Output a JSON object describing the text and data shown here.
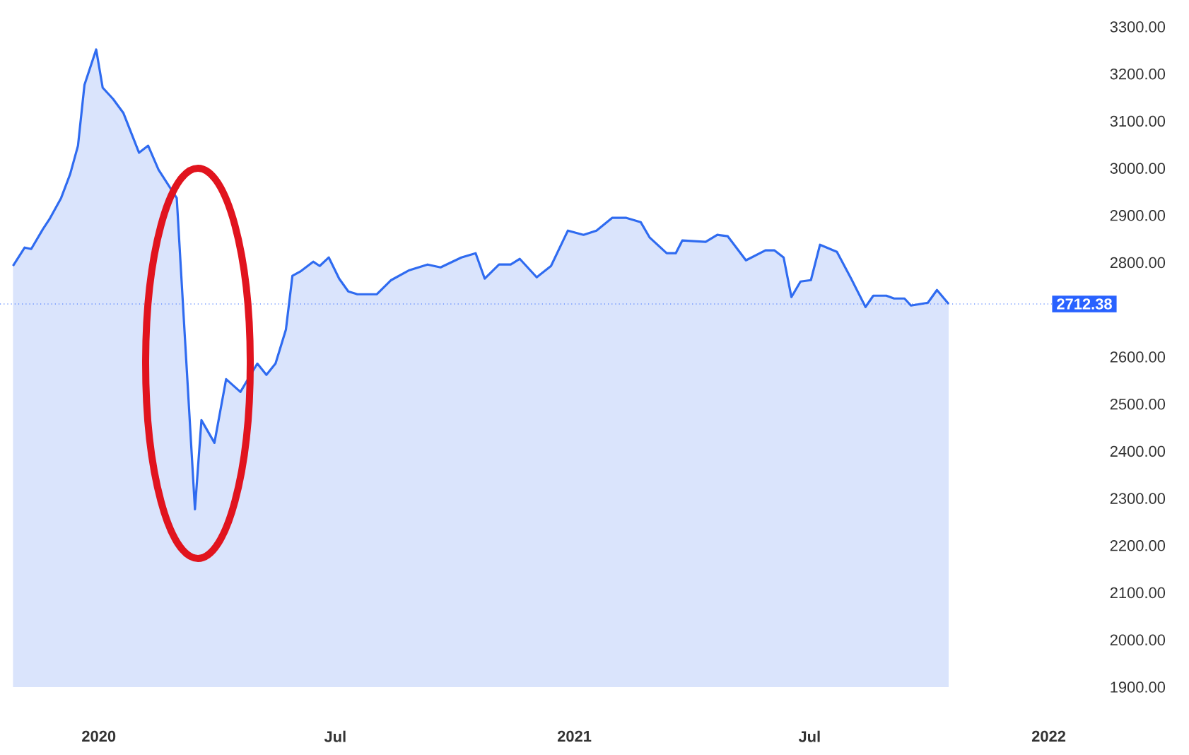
{
  "chart_data": {
    "type": "area",
    "color": "#2f6bf0",
    "x": [
      "2019-10-27",
      "2019-11-05",
      "2019-11-10",
      "2019-11-19",
      "2019-11-24",
      "2019-12-03",
      "2019-12-10",
      "2019-12-16",
      "2019-12-21",
      "2019-12-30",
      "2020-01-04",
      "2020-01-12",
      "2020-01-20",
      "2020-02-01",
      "2020-02-08",
      "2020-02-16",
      "2020-03-01",
      "2020-03-15",
      "2020-03-20",
      "2020-03-30",
      "2020-04-08",
      "2020-04-19",
      "2020-05-02",
      "2020-05-09",
      "2020-05-16",
      "2020-05-24",
      "2020-05-29",
      "2020-06-04",
      "2020-06-14",
      "2020-06-19",
      "2020-06-26",
      "2020-07-04",
      "2020-07-11",
      "2020-07-18",
      "2020-08-02",
      "2020-08-13",
      "2020-08-27",
      "2020-09-10",
      "2020-09-20",
      "2020-10-06",
      "2020-10-17",
      "2020-10-24",
      "2020-11-04",
      "2020-11-13",
      "2020-11-20",
      "2020-12-03",
      "2020-12-14",
      "2020-12-27",
      "2021-01-08",
      "2021-01-18",
      "2021-01-30",
      "2021-02-10",
      "2021-02-21",
      "2021-02-28",
      "2021-03-13",
      "2021-03-20",
      "2021-03-25",
      "2021-04-12",
      "2021-04-21",
      "2021-04-29",
      "2021-05-13",
      "2021-05-28",
      "2021-06-04",
      "2021-06-11",
      "2021-06-17",
      "2021-06-24",
      "2021-07-02",
      "2021-07-09",
      "2021-07-22",
      "2021-08-02",
      "2021-08-13",
      "2021-08-19",
      "2021-08-29",
      "2021-09-04",
      "2021-09-12",
      "2021-09-17",
      "2021-09-30",
      "2021-10-07",
      "2021-10-16"
    ],
    "values": [
      2793,
      2832,
      2829,
      2871,
      2892,
      2937,
      2988,
      3048,
      3177,
      3252,
      3171,
      3147,
      3117,
      3033,
      3048,
      2997,
      2937,
      2277,
      2466,
      2418,
      2553,
      2526,
      2586,
      2562,
      2586,
      2658,
      2772,
      2781,
      2802,
      2793,
      2811,
      2766,
      2739,
      2733,
      2733,
      2763,
      2784,
      2796,
      2790,
      2811,
      2820,
      2766,
      2796,
      2796,
      2808,
      2769,
      2793,
      2868,
      2859,
      2868,
      2895,
      2895,
      2886,
      2853,
      2820,
      2820,
      2847,
      2844,
      2859,
      2856,
      2805,
      2826,
      2826,
      2811,
      2727,
      2760,
      2763,
      2838,
      2823,
      2766,
      2706,
      2730,
      2730,
      2724,
      2724,
      2709,
      2715,
      2742,
      2712.38
    ],
    "xlim": [
      "2019-10-17",
      "2022-01-23"
    ],
    "ylim": [
      1900,
      3300
    ],
    "xticks": [
      {
        "value": "2020-01-01",
        "label": "2020"
      },
      {
        "value": "2020-07-01",
        "label": "Jul"
      },
      {
        "value": "2021-01-01",
        "label": "2021"
      },
      {
        "value": "2021-07-01",
        "label": "Jul"
      },
      {
        "value": "2022-01-01",
        "label": "2022"
      }
    ],
    "yticks": [
      {
        "value": 1900,
        "label": "1900.00"
      },
      {
        "value": 2000,
        "label": "2000.00"
      },
      {
        "value": 2100,
        "label": "2100.00"
      },
      {
        "value": 2200,
        "label": "2200.00"
      },
      {
        "value": 2300,
        "label": "2300.00"
      },
      {
        "value": 2400,
        "label": "2400.00"
      },
      {
        "value": 2500,
        "label": "2500.00"
      },
      {
        "value": 2600,
        "label": "2600.00"
      },
      {
        "value": 2800,
        "label": "2800.00"
      },
      {
        "value": 2900,
        "label": "2900.00"
      },
      {
        "value": 3000,
        "label": "3000.00"
      },
      {
        "value": 3100,
        "label": "3100.00"
      },
      {
        "value": 3200,
        "label": "3200.00"
      },
      {
        "value": 3300,
        "label": "3300.00"
      }
    ],
    "ref_lines": [
      {
        "axis": "y",
        "value": 2712.38,
        "label": "2712.38",
        "color": "#2962ff",
        "line_style": "dotted"
      }
    ]
  }
}
